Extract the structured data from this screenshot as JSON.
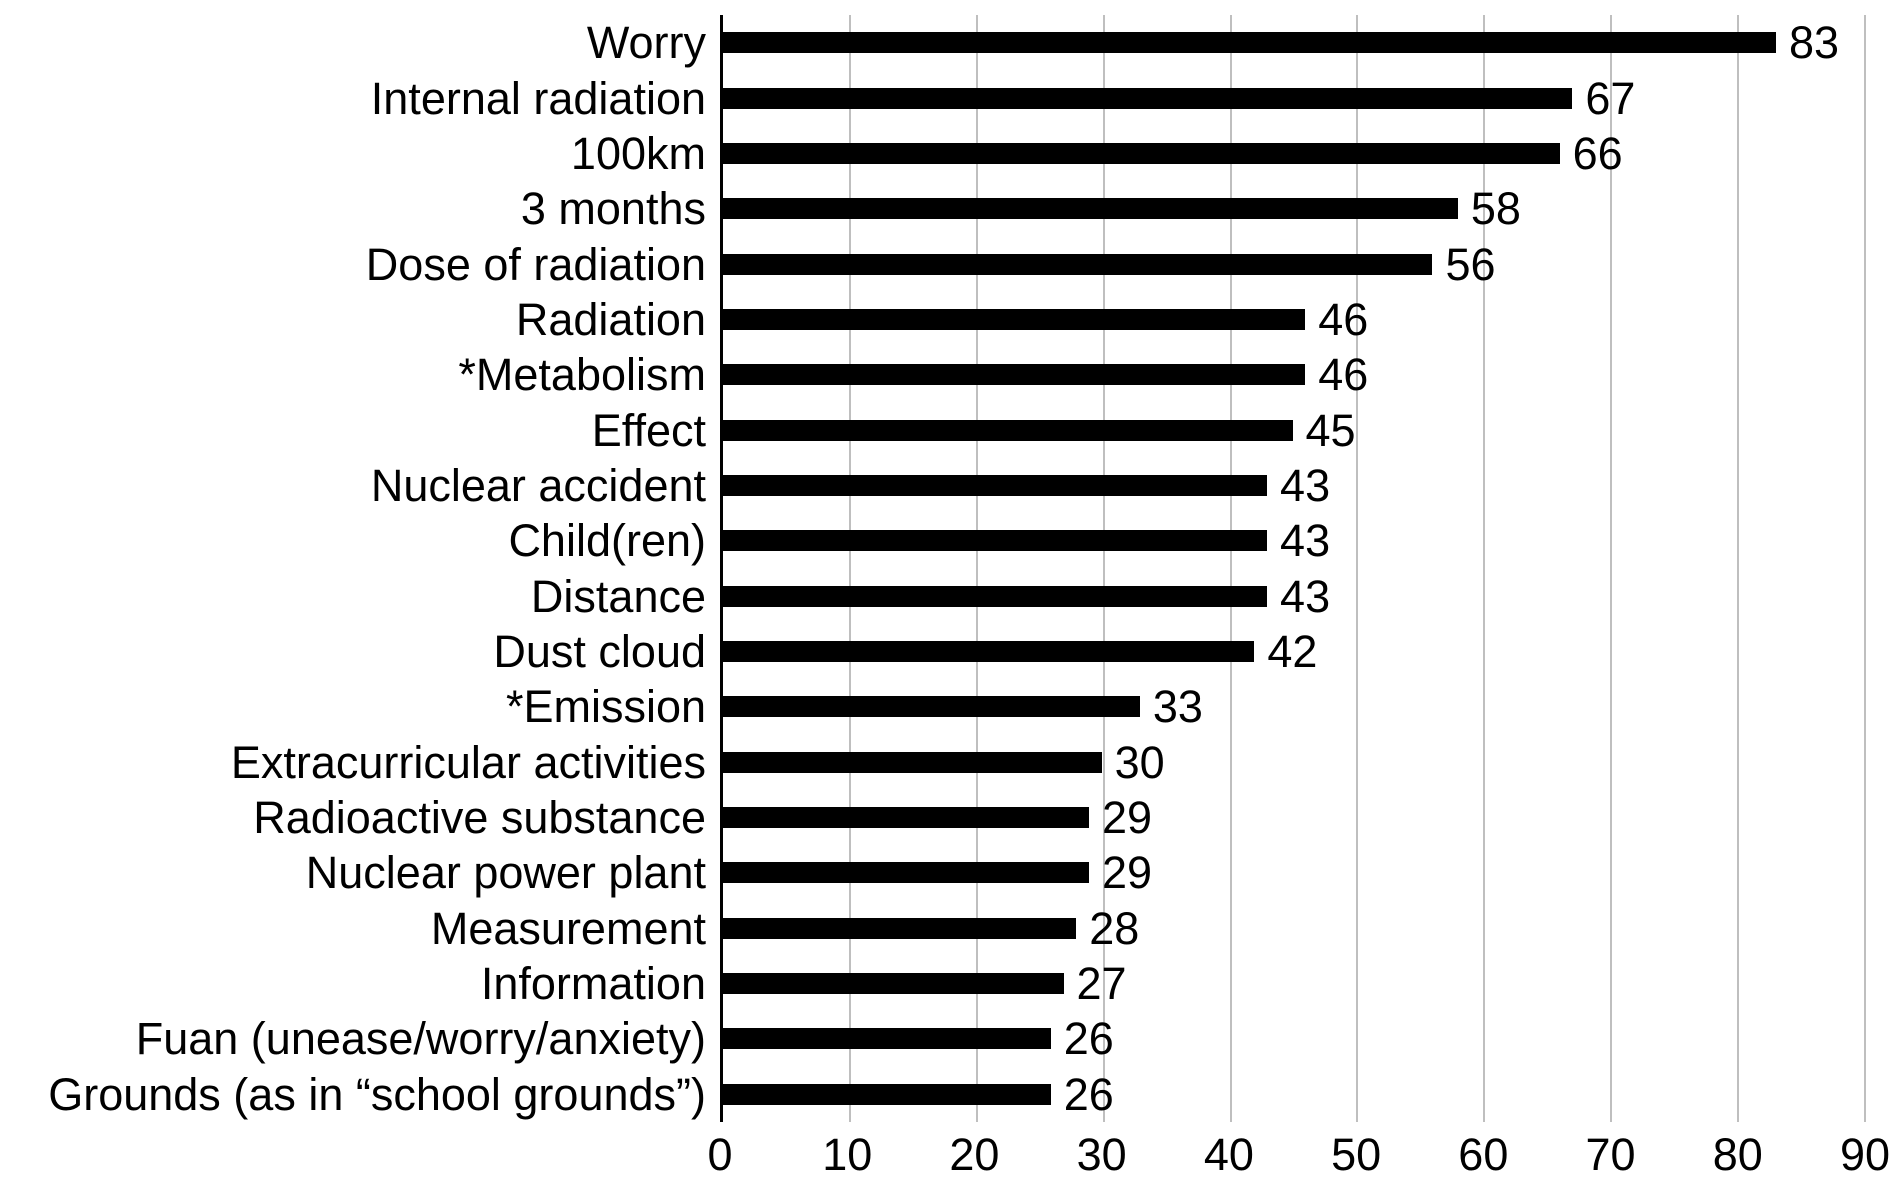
{
  "chart_data": {
    "type": "bar",
    "orientation": "horizontal",
    "title": "",
    "xlabel": "",
    "ylabel": "",
    "categories": [
      "Worry",
      "Internal radiation",
      "100km",
      "3 months",
      "Dose of radiation",
      "Radiation",
      "*Metabolism",
      "Effect",
      "Nuclear accident",
      "Child(ren)",
      "Distance",
      "Dust cloud",
      "*Emission",
      "Extracurricular activities",
      "Radioactive substance",
      "Nuclear power plant",
      "Measurement",
      "Information",
      "Fuan (unease/worry/anxiety)",
      "Grounds (as in “school grounds”)"
    ],
    "values": [
      83,
      67,
      66,
      58,
      56,
      46,
      46,
      45,
      43,
      43,
      43,
      42,
      33,
      30,
      29,
      29,
      28,
      27,
      26,
      26
    ],
    "data_labels_shown": true,
    "xlim": [
      0,
      90
    ],
    "x_ticks": [
      0,
      10,
      20,
      30,
      40,
      50,
      60,
      70,
      80,
      90
    ],
    "grid": "vertical-only",
    "legend": "none",
    "bar_color": "#000000",
    "gridline_color": "#bfbfbf",
    "axis_line_color": "#000000",
    "background_color": "#ffffff",
    "text_color": "#000000"
  }
}
